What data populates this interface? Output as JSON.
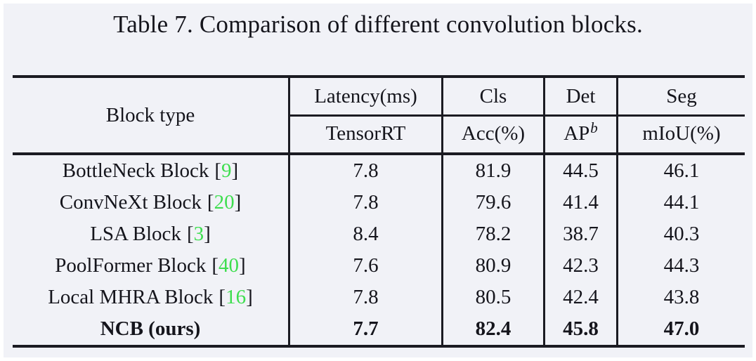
{
  "title": "Table 7. Comparison of different convolution blocks.",
  "colors": {
    "bg": "#f1f2f7",
    "text": "#15151c",
    "rule": "#1b1b22",
    "green": "#3ede4f"
  },
  "table": {
    "citation_bracket_open": "[",
    "citation_bracket_close": "]",
    "header": {
      "block_type": "Block type",
      "groups": [
        {
          "top": "Latency(ms)",
          "bottom": "TensorRT"
        },
        {
          "top": "Cls",
          "bottom": "Acc(%)"
        },
        {
          "top": "Det",
          "bottom_base": "AP",
          "bottom_sup": "b"
        },
        {
          "top": "Seg",
          "bottom": "mIoU(%)"
        }
      ]
    },
    "rows": [
      {
        "block": "BottleNeck Block",
        "cite": "9",
        "latency": "7.8",
        "acc": "81.9",
        "ap": "44.5",
        "miou": "46.1"
      },
      {
        "block": "ConvNeXt Block",
        "cite": "20",
        "latency": "7.8",
        "acc": "79.6",
        "ap": "41.4",
        "miou": "44.1"
      },
      {
        "block": "LSA Block",
        "cite": "3",
        "latency": "8.4",
        "acc": "78.2",
        "ap": "38.7",
        "miou": "40.3"
      },
      {
        "block": "PoolFormer Block",
        "cite": "40",
        "latency": "7.6",
        "acc": "80.9",
        "ap": "42.3",
        "miou": "44.3"
      },
      {
        "block": "Local MHRA Block",
        "cite": "16",
        "latency": "7.8",
        "acc": "80.5",
        "ap": "42.4",
        "miou": "43.8"
      },
      {
        "block": "NCB (ours)",
        "latency": "7.7",
        "acc": "82.4",
        "ap": "45.8",
        "miou": "47.0"
      }
    ]
  }
}
